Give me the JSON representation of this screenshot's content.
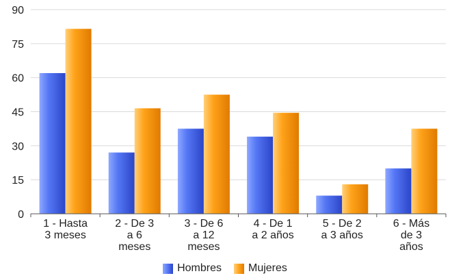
{
  "chart_data": {
    "type": "bar",
    "categories": [
      [
        "1 - Hasta",
        "3 meses"
      ],
      [
        "2 - De 3",
        "a 6",
        "meses"
      ],
      [
        "3 - De 6",
        "a 12",
        "meses"
      ],
      [
        "4 - De 1",
        "a 2 años"
      ],
      [
        "5 - De 2",
        "a 3 años"
      ],
      [
        "6 - Más",
        "de 3",
        "años"
      ]
    ],
    "series": [
      {
        "name": "Hombres",
        "values": [
          62,
          27,
          37.5,
          34,
          8,
          20
        ],
        "color": "#4466ee"
      },
      {
        "name": "Mujeres",
        "values": [
          81.5,
          46.5,
          52.5,
          44.5,
          13,
          37.5
        ],
        "color": "#ff9900"
      }
    ],
    "yticks": [
      0,
      15,
      30,
      45,
      60,
      75,
      90
    ],
    "ylim": [
      0,
      90
    ],
    "grid": true,
    "legend": "bottom-center"
  }
}
